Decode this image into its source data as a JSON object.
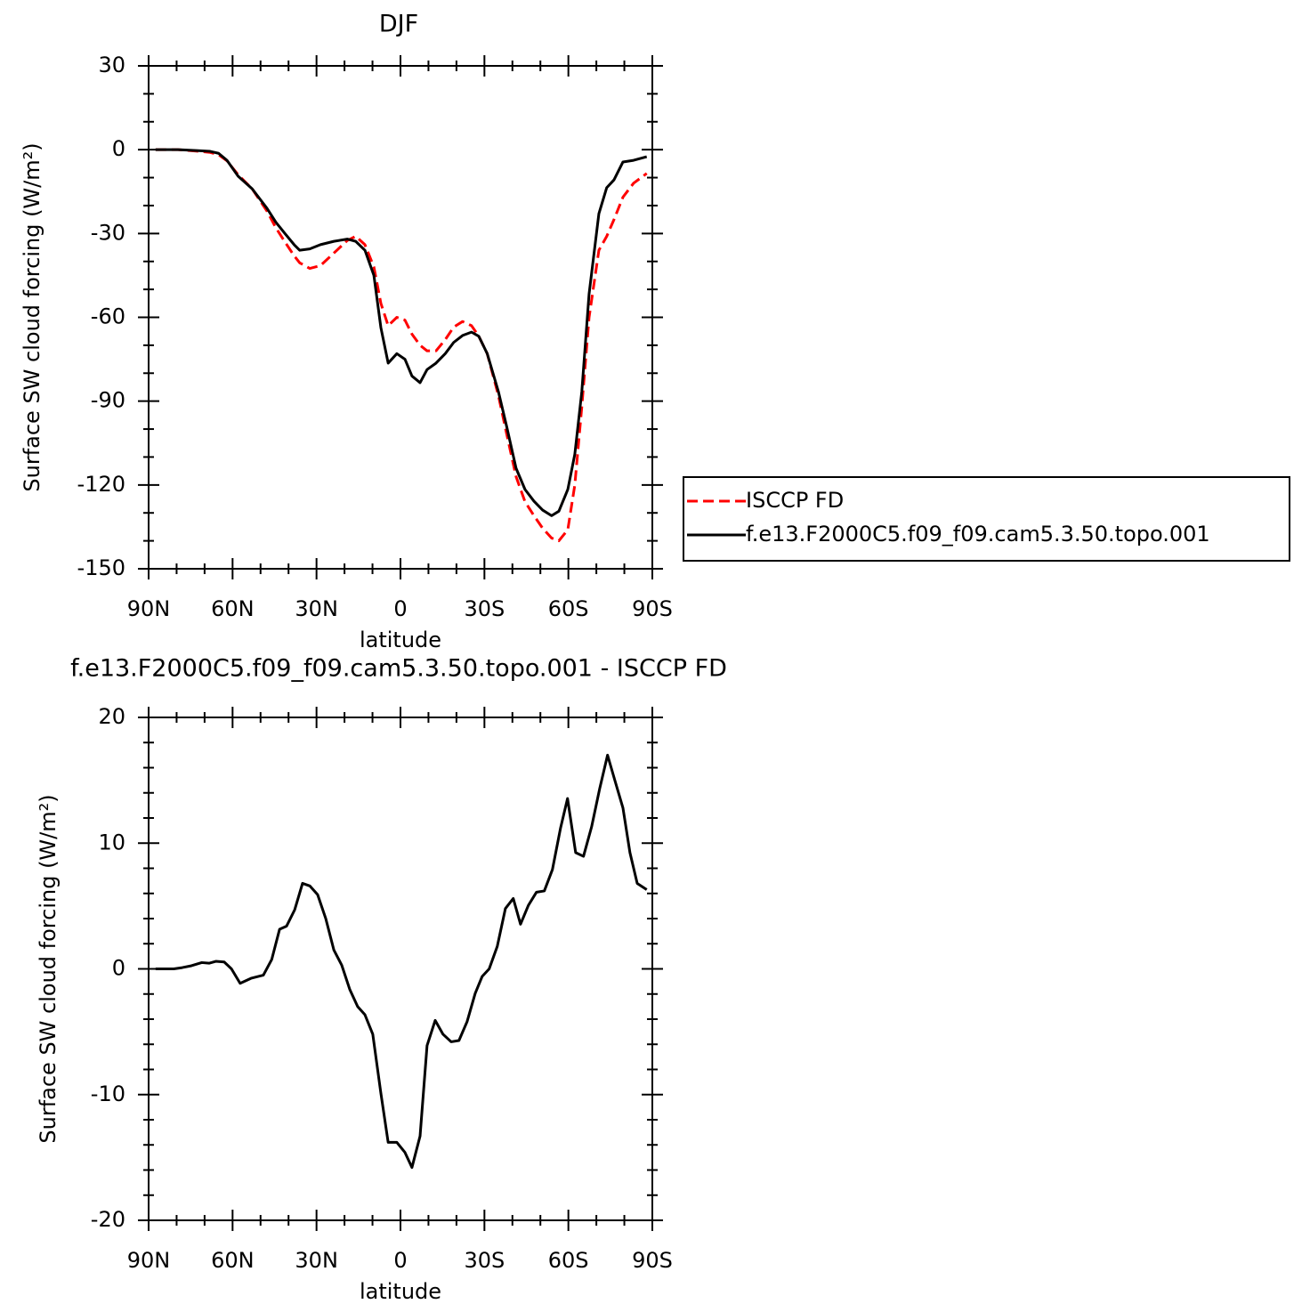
{
  "chart_data": [
    {
      "type": "line",
      "title": "DJF",
      "xlabel": "latitude",
      "ylabel": "Surface SW cloud forcing (W/m²)",
      "x": [
        87.5,
        79.5,
        73,
        68,
        65,
        62,
        58,
        53,
        47.7,
        44.5,
        41.3,
        38,
        36,
        32.4,
        28.6,
        23.8,
        19,
        16,
        12.7,
        9.5,
        7,
        4.4,
        1.3,
        -1.6,
        -4.1,
        -7,
        -9.5,
        -12.7,
        -16,
        -19,
        -22.2,
        -25.4,
        -28,
        -31,
        -35,
        -38,
        -41.3,
        -44.5,
        -47.7,
        -50.8,
        -54,
        -56.6,
        -59.8,
        -62.3,
        -64.8,
        -67.4,
        -70.9,
        -73.7,
        -76.3,
        -79.5,
        -83.3,
        -88
      ],
      "series": [
        {
          "name": "ISCCP FD",
          "color": "#ff0000",
          "dash": "dashed",
          "values": [
            0,
            0,
            -0.5,
            -1,
            -1.8,
            -4,
            -9,
            -14,
            -22,
            -28,
            -33,
            -38,
            -40.5,
            -42.5,
            -41.5,
            -37,
            -32.5,
            -31,
            -34,
            -42,
            -55,
            -63,
            -60,
            -61,
            -66,
            -70,
            -72,
            -72,
            -68,
            -63.5,
            -61.5,
            -63,
            -66.8,
            -73,
            -88,
            -102,
            -117,
            -126,
            -131,
            -135.5,
            -139,
            -140,
            -136,
            -120,
            -92,
            -60,
            -36,
            -31,
            -25,
            -17,
            -12,
            -8.5
          ]
        },
        {
          "name": "f.e13.F2000C5.f09_f09.cam5.3.50.topo.001",
          "color": "#000000",
          "dash": "solid",
          "values": [
            0,
            0,
            -0.3,
            -0.6,
            -1.3,
            -3.8,
            -9.5,
            -14,
            -21,
            -26,
            -30,
            -34,
            -36,
            -35.5,
            -34,
            -32.8,
            -32,
            -32.8,
            -36,
            -45,
            -63.7,
            -76.4,
            -73,
            -75,
            -81,
            -83.4,
            -78.7,
            -76.4,
            -73,
            -69,
            -66.5,
            -65.3,
            -66.8,
            -73,
            -86.6,
            -99.3,
            -114,
            -121.6,
            -125.8,
            -129,
            -131,
            -129.4,
            -121.6,
            -109,
            -86.6,
            -51.6,
            -22.9,
            -13.6,
            -10.8,
            -4.4,
            -3.8,
            -2.5
          ]
        }
      ],
      "xlim": [
        90,
        -90
      ],
      "xticks": [
        {
          "value": 90,
          "label": "90N"
        },
        {
          "value": 60,
          "label": "60N"
        },
        {
          "value": 30,
          "label": "30N"
        },
        0,
        {
          "value": -30,
          "label": "30S"
        },
        {
          "value": -60,
          "label": "60S"
        },
        {
          "value": -90,
          "label": "90S"
        }
      ],
      "minor_xticks": [
        80,
        70,
        50,
        40,
        20,
        10,
        -10,
        -20,
        -40,
        -50,
        -70,
        -80
      ],
      "ylim": [
        -150,
        30
      ],
      "yticks": [
        -150,
        -120,
        -90,
        -60,
        -30,
        0,
        30
      ],
      "minor_yticks": [
        -140,
        -130,
        -110,
        -100,
        -80,
        -70,
        -50,
        -40,
        -20,
        -10,
        10,
        20
      ],
      "legend": "right"
    },
    {
      "type": "line",
      "title": "f.e13.F2000C5.f09_f09.cam5.3.50.topo.001 - ISCCP FD",
      "xlabel": "latitude",
      "ylabel": "Surface SW cloud forcing (W/m²)",
      "x": [
        87.5,
        81,
        78,
        74.7,
        71,
        68.4,
        66,
        63,
        60.4,
        57.3,
        53.4,
        49,
        46,
        43.2,
        40.7,
        37.8,
        35,
        32.4,
        29.6,
        26.7,
        23.8,
        21,
        18.1,
        15.3,
        12.7,
        9.9,
        7,
        4.4,
        1.3,
        -1.6,
        -4.1,
        -7,
        -9.5,
        -12.4,
        -15.2,
        -18.1,
        -20.9,
        -23.8,
        -26.7,
        -29.2,
        -31.7,
        -34.6,
        -37.5,
        -40.3,
        -42.9,
        -45.7,
        -48.6,
        -51.4,
        -54.3,
        -57.2,
        -59.7,
        -62.6,
        -65.4,
        -68.3,
        -71.2,
        -74,
        -76.6,
        -79.5,
        -82,
        -84.6,
        -88
      ],
      "series": [
        {
          "color": "#000000",
          "dash": "solid",
          "values": [
            0,
            0,
            0.1,
            0.25,
            0.5,
            0.45,
            0.6,
            0.55,
            0,
            -1.15,
            -0.75,
            -0.5,
            0.75,
            3.15,
            3.4,
            4.7,
            6.8,
            6.6,
            5.9,
            4,
            1.5,
            0.3,
            -1.65,
            -3,
            -3.65,
            -5.2,
            -9.9,
            -13.8,
            -13.8,
            -14.6,
            -15.8,
            -13.3,
            -6.1,
            -4.1,
            -5.2,
            -5.8,
            -5.7,
            -4.2,
            -1.95,
            -0.6,
            0,
            1.8,
            4.8,
            5.6,
            3.55,
            5.05,
            6.1,
            6.2,
            7.9,
            11.2,
            13.55,
            9.25,
            8.95,
            11.3,
            14.35,
            17,
            15,
            12.8,
            9.25,
            6.8,
            6.3
          ]
        }
      ],
      "xlim": [
        90,
        -90
      ],
      "xticks": [
        {
          "value": 90,
          "label": "90N"
        },
        {
          "value": 60,
          "label": "60N"
        },
        {
          "value": 30,
          "label": "30N"
        },
        0,
        {
          "value": -30,
          "label": "30S"
        },
        {
          "value": -60,
          "label": "60S"
        },
        {
          "value": -90,
          "label": "90S"
        }
      ],
      "minor_xticks": [
        80,
        70,
        50,
        40,
        20,
        10,
        -10,
        -20,
        -40,
        -50,
        -70,
        -80
      ],
      "ylim": [
        -20,
        20
      ],
      "yticks": [
        -20,
        -10,
        0,
        10,
        20
      ],
      "minor_yticks": [
        -18,
        -16,
        -14,
        -12,
        -8,
        -6,
        -4,
        -2,
        2,
        4,
        6,
        8,
        12,
        14,
        16,
        18
      ]
    }
  ]
}
